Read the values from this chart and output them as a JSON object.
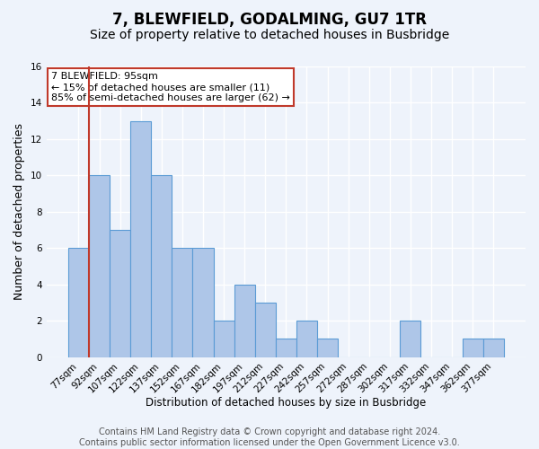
{
  "title": "7, BLEWFIELD, GODALMING, GU7 1TR",
  "subtitle": "Size of property relative to detached houses in Busbridge",
  "xlabel": "Distribution of detached houses by size in Busbridge",
  "ylabel": "Number of detached properties",
  "bar_labels": [
    "77sqm",
    "92sqm",
    "107sqm",
    "122sqm",
    "137sqm",
    "152sqm",
    "167sqm",
    "182sqm",
    "197sqm",
    "212sqm",
    "227sqm",
    "242sqm",
    "257sqm",
    "272sqm",
    "287sqm",
    "302sqm",
    "317sqm",
    "332sqm",
    "347sqm",
    "362sqm",
    "377sqm"
  ],
  "bar_values": [
    6,
    10,
    7,
    13,
    10,
    6,
    6,
    2,
    4,
    3,
    1,
    2,
    1,
    0,
    0,
    0,
    2,
    0,
    0,
    1,
    1
  ],
  "bar_color": "#AEC6E8",
  "bar_edge_color": "#5B9BD5",
  "background_color": "#EEF3FB",
  "grid_color": "#ffffff",
  "vline_x": 0.5,
  "vline_color": "#c0392b",
  "annotation_text": "7 BLEWFIELD: 95sqm\n← 15% of detached houses are smaller (11)\n85% of semi-detached houses are larger (62) →",
  "annotation_box_color": "#ffffff",
  "annotation_box_edge_color": "#c0392b",
  "ylim": [
    0,
    16
  ],
  "yticks": [
    0,
    2,
    4,
    6,
    8,
    10,
    12,
    14,
    16
  ],
  "footer_line1": "Contains HM Land Registry data © Crown copyright and database right 2024.",
  "footer_line2": "Contains public sector information licensed under the Open Government Licence v3.0.",
  "title_fontsize": 12,
  "subtitle_fontsize": 10,
  "xlabel_fontsize": 8.5,
  "ylabel_fontsize": 9,
  "tick_fontsize": 7.5,
  "annotation_fontsize": 8,
  "footer_fontsize": 7
}
